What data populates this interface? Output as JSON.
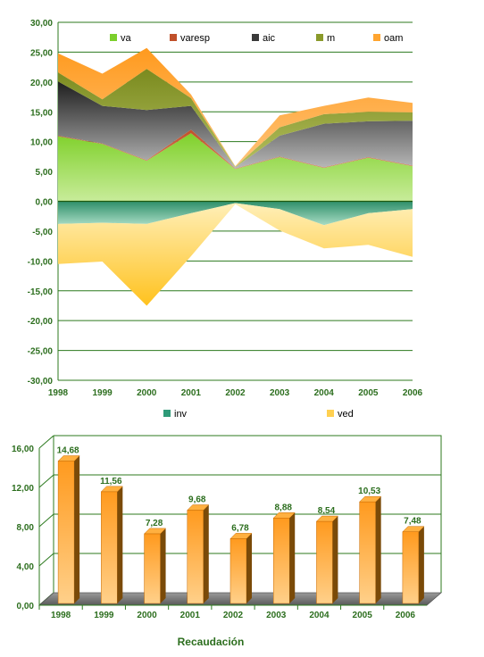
{
  "chart_data": [
    {
      "type": "area",
      "subtype": "stacked",
      "years": [
        "1998",
        "1999",
        "2000",
        "2001",
        "2002",
        "2003",
        "2004",
        "2005",
        "2006"
      ],
      "ylim": [
        -30,
        30
      ],
      "yticks": [
        "30,00",
        "25,00",
        "20,00",
        "15,00",
        "10,00",
        "5,00",
        "0,00",
        "-5,00",
        "-10,00",
        "-15,00",
        "-20,00",
        "-25,00",
        "-30,00"
      ],
      "grid": true,
      "series": [
        {
          "name": "va",
          "color": "#7ccf2c",
          "values": [
            10.9,
            9.6,
            6.8,
            11.4,
            5.4,
            7.4,
            5.6,
            7.3,
            5.9
          ]
        },
        {
          "name": "varesp",
          "color": "#c0502a",
          "values": [
            0.1,
            0.1,
            0.1,
            0.6,
            0.1,
            0.1,
            0.1,
            0.1,
            0.1
          ]
        },
        {
          "name": "aic",
          "color": "#3a3a3a",
          "values": [
            9.1,
            6.3,
            8.4,
            4.0,
            0.2,
            3.5,
            7.3,
            6.0,
            7.5
          ]
        },
        {
          "name": "m",
          "color": "#8a9a2a",
          "values": [
            1.5,
            1.1,
            6.9,
            1.3,
            0.1,
            1.4,
            1.6,
            1.6,
            1.4
          ]
        },
        {
          "name": "oam",
          "color": "#ffa530",
          "values": [
            3.2,
            4.3,
            3.5,
            0.6,
            0.1,
            2.0,
            1.4,
            2.4,
            1.6
          ]
        },
        {
          "name": "inv",
          "color": "#2e9a78",
          "values": [
            -3.8,
            -3.6,
            -3.8,
            -2.0,
            -0.3,
            -1.3,
            -4.0,
            -2.0,
            -1.3
          ]
        },
        {
          "name": "ved",
          "color": "#ffd050",
          "values": [
            -6.7,
            -6.5,
            -13.7,
            -7.2,
            -0.2,
            -3.6,
            -3.9,
            -5.3,
            -8.0
          ]
        }
      ]
    },
    {
      "type": "bar",
      "title": "Recaudación",
      "categories": [
        "1998",
        "1999",
        "2000",
        "2001",
        "2002",
        "2003",
        "2004",
        "2005",
        "2006"
      ],
      "values": [
        14.68,
        11.56,
        7.28,
        9.68,
        6.78,
        8.88,
        8.54,
        10.53,
        7.48
      ],
      "labels": [
        "14,68",
        "11,56",
        "7,28",
        "9,68",
        "6,78",
        "8,88",
        "8,54",
        "10,53",
        "7,48"
      ],
      "ylim": [
        0,
        16
      ],
      "yticks": [
        "16,00",
        "12,00",
        "8,00",
        "4,00",
        "0,00"
      ],
      "grid": true,
      "color": "#ff9a1e"
    }
  ]
}
